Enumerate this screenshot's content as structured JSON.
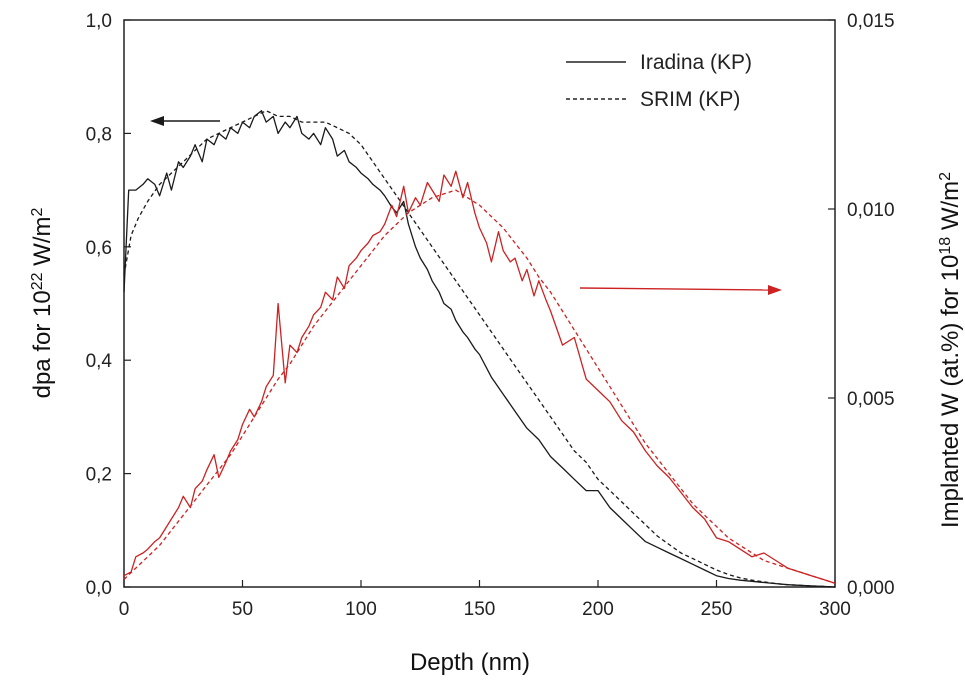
{
  "chart_data": {
    "type": "line",
    "xlabel": "Depth (nm)",
    "ylabel_left": {
      "prefix": "dpa for 10",
      "exp": "22",
      "mid": " W/m",
      "exp2": "2"
    },
    "ylabel_right": {
      "prefix": "Implanted W (at.%) for 10",
      "exp": "18",
      "mid": " W/m",
      "exp2": "2"
    },
    "xlim": [
      0,
      300
    ],
    "ylim_left": [
      0,
      1.0
    ],
    "ylim_right": [
      0,
      0.015
    ],
    "x_ticks": [
      {
        "value": 0,
        "label": "0"
      },
      {
        "value": 50,
        "label": "50"
      },
      {
        "value": 100,
        "label": "100"
      },
      {
        "value": 150,
        "label": "150"
      },
      {
        "value": 200,
        "label": "200"
      },
      {
        "value": 250,
        "label": "250"
      },
      {
        "value": 300,
        "label": "300"
      }
    ],
    "y_left_ticks": [
      {
        "value": 0,
        "label": "0,0"
      },
      {
        "value": 0.2,
        "label": "0,2"
      },
      {
        "value": 0.4,
        "label": "0,4"
      },
      {
        "value": 0.6,
        "label": "0,6"
      },
      {
        "value": 0.8,
        "label": "0,8"
      },
      {
        "value": 1.0,
        "label": "1,0"
      }
    ],
    "y_right_ticks": [
      {
        "value": 0,
        "label": "0,000"
      },
      {
        "value": 0.005,
        "label": "0,005"
      },
      {
        "value": 0.01,
        "label": "0,010"
      },
      {
        "value": 0.015,
        "label": "0,015"
      }
    ],
    "legend": {
      "position": "top-right",
      "entries": [
        {
          "label": "Iradina (KP)",
          "style": "solid"
        },
        {
          "label": "SRIM (KP)",
          "style": "dashed"
        }
      ]
    },
    "colors": {
      "dpa": "#1a1a1a",
      "implanted": "#cc2222"
    },
    "series": [
      {
        "name": "Iradina (KP)",
        "quantity": "dpa",
        "axis": "left",
        "style": "solid",
        "x": [
          0,
          2,
          5,
          8,
          10,
          13,
          15,
          18,
          20,
          23,
          25,
          28,
          30,
          33,
          35,
          38,
          40,
          43,
          45,
          48,
          50,
          53,
          55,
          58,
          60,
          63,
          65,
          68,
          70,
          73,
          75,
          78,
          80,
          83,
          85,
          88,
          90,
          93,
          95,
          98,
          100,
          103,
          105,
          108,
          110,
          113,
          115,
          118,
          120,
          123,
          125,
          128,
          130,
          133,
          135,
          138,
          140,
          143,
          145,
          148,
          150,
          155,
          160,
          165,
          170,
          175,
          180,
          185,
          190,
          195,
          200,
          205,
          210,
          215,
          220,
          225,
          230,
          235,
          240,
          245,
          250,
          255,
          260,
          265,
          270,
          275,
          280,
          285,
          290,
          295,
          300
        ],
        "y": [
          0.52,
          0.7,
          0.7,
          0.71,
          0.72,
          0.71,
          0.69,
          0.73,
          0.7,
          0.75,
          0.74,
          0.76,
          0.78,
          0.75,
          0.79,
          0.78,
          0.8,
          0.79,
          0.81,
          0.8,
          0.82,
          0.81,
          0.83,
          0.84,
          0.82,
          0.83,
          0.8,
          0.82,
          0.81,
          0.83,
          0.8,
          0.79,
          0.8,
          0.78,
          0.81,
          0.79,
          0.76,
          0.77,
          0.75,
          0.74,
          0.73,
          0.72,
          0.71,
          0.7,
          0.69,
          0.67,
          0.66,
          0.68,
          0.64,
          0.6,
          0.58,
          0.56,
          0.54,
          0.52,
          0.5,
          0.49,
          0.47,
          0.45,
          0.44,
          0.42,
          0.41,
          0.37,
          0.34,
          0.31,
          0.28,
          0.26,
          0.23,
          0.21,
          0.19,
          0.17,
          0.17,
          0.14,
          0.12,
          0.1,
          0.08,
          0.07,
          0.06,
          0.05,
          0.04,
          0.03,
          0.02,
          0.015,
          0.012,
          0.01,
          0.008,
          0.006,
          0.004,
          0.003,
          0.002,
          0.001,
          0.0
        ]
      },
      {
        "name": "SRIM (KP)",
        "quantity": "dpa",
        "axis": "left",
        "style": "dashed",
        "x": [
          0,
          3,
          6,
          10,
          15,
          20,
          25,
          30,
          35,
          40,
          45,
          50,
          55,
          60,
          65,
          70,
          75,
          80,
          85,
          90,
          95,
          100,
          105,
          110,
          115,
          120,
          125,
          130,
          135,
          140,
          145,
          150,
          155,
          160,
          165,
          170,
          175,
          180,
          185,
          190,
          195,
          200,
          205,
          210,
          215,
          220,
          225,
          230,
          235,
          240,
          245,
          250,
          255,
          260,
          265,
          270,
          275,
          280,
          285,
          290,
          295,
          300
        ],
        "y": [
          0.55,
          0.62,
          0.65,
          0.68,
          0.71,
          0.73,
          0.75,
          0.77,
          0.79,
          0.8,
          0.81,
          0.82,
          0.83,
          0.84,
          0.83,
          0.83,
          0.82,
          0.82,
          0.82,
          0.81,
          0.8,
          0.78,
          0.75,
          0.72,
          0.69,
          0.66,
          0.63,
          0.6,
          0.57,
          0.54,
          0.51,
          0.48,
          0.45,
          0.42,
          0.39,
          0.36,
          0.33,
          0.3,
          0.27,
          0.24,
          0.22,
          0.19,
          0.17,
          0.15,
          0.13,
          0.11,
          0.09,
          0.075,
          0.06,
          0.05,
          0.04,
          0.03,
          0.022,
          0.016,
          0.012,
          0.009,
          0.006,
          0.004,
          0.003,
          0.002,
          0.001,
          0.0
        ]
      },
      {
        "name": "Iradina (KP)",
        "quantity": "implanted W",
        "axis": "right",
        "style": "solid",
        "x": [
          0,
          3,
          5,
          8,
          10,
          13,
          15,
          18,
          20,
          23,
          25,
          28,
          30,
          33,
          35,
          38,
          40,
          43,
          45,
          48,
          50,
          53,
          55,
          58,
          60,
          63,
          65,
          68,
          70,
          73,
          75,
          78,
          80,
          83,
          85,
          88,
          90,
          93,
          95,
          98,
          100,
          103,
          105,
          108,
          110,
          113,
          115,
          118,
          120,
          123,
          125,
          128,
          130,
          133,
          135,
          138,
          140,
          143,
          145,
          148,
          150,
          153,
          155,
          158,
          160,
          163,
          165,
          168,
          170,
          173,
          175,
          178,
          180,
          185,
          190,
          195,
          200,
          205,
          210,
          215,
          220,
          225,
          230,
          235,
          240,
          245,
          250,
          255,
          260,
          265,
          270,
          275,
          280,
          285,
          290,
          295,
          300
        ],
        "y": [
          0.0003,
          0.0004,
          0.0008,
          0.0009,
          0.001,
          0.0012,
          0.0013,
          0.0016,
          0.0018,
          0.0021,
          0.0024,
          0.0021,
          0.0026,
          0.0028,
          0.0031,
          0.0035,
          0.0029,
          0.0033,
          0.0036,
          0.0039,
          0.0043,
          0.0047,
          0.0045,
          0.0049,
          0.0053,
          0.0056,
          0.0075,
          0.0054,
          0.0064,
          0.0062,
          0.0066,
          0.0069,
          0.0072,
          0.0074,
          0.0078,
          0.0076,
          0.0082,
          0.0079,
          0.0085,
          0.0087,
          0.0089,
          0.0091,
          0.0093,
          0.0094,
          0.0096,
          0.0101,
          0.0098,
          0.0106,
          0.0099,
          0.0103,
          0.0101,
          0.0107,
          0.0105,
          0.0102,
          0.0109,
          0.0106,
          0.011,
          0.0103,
          0.0107,
          0.0099,
          0.0095,
          0.0091,
          0.0086,
          0.0094,
          0.0089,
          0.0086,
          0.0087,
          0.0081,
          0.0084,
          0.0077,
          0.0081,
          0.0076,
          0.0073,
          0.0064,
          0.0066,
          0.0055,
          0.0052,
          0.0049,
          0.0044,
          0.0041,
          0.0036,
          0.0032,
          0.0029,
          0.0025,
          0.0021,
          0.0018,
          0.0013,
          0.0012,
          0.001,
          0.0008,
          0.0009,
          0.0007,
          0.0005,
          0.0004,
          0.0003,
          0.0002,
          0.0001
        ]
      },
      {
        "name": "SRIM (KP)",
        "quantity": "implanted W",
        "axis": "right",
        "style": "dashed",
        "x": [
          0,
          5,
          10,
          15,
          20,
          25,
          30,
          35,
          40,
          45,
          50,
          55,
          60,
          65,
          70,
          75,
          80,
          85,
          90,
          95,
          100,
          105,
          110,
          115,
          120,
          125,
          130,
          135,
          140,
          145,
          150,
          155,
          160,
          165,
          170,
          175,
          180,
          185,
          190,
          195,
          200,
          205,
          210,
          215,
          220,
          225,
          230,
          235,
          240,
          245,
          250,
          255,
          260,
          265,
          270,
          275,
          280,
          285,
          290,
          295,
          300
        ],
        "y": [
          0.0002,
          0.0005,
          0.0008,
          0.0011,
          0.0015,
          0.0019,
          0.0023,
          0.0027,
          0.0031,
          0.0035,
          0.004,
          0.0045,
          0.005,
          0.0055,
          0.0059,
          0.0064,
          0.0069,
          0.0073,
          0.0077,
          0.0081,
          0.0085,
          0.0089,
          0.0093,
          0.0096,
          0.0099,
          0.0101,
          0.0103,
          0.0104,
          0.0105,
          0.0103,
          0.0101,
          0.0098,
          0.0095,
          0.0091,
          0.0087,
          0.0082,
          0.0078,
          0.0073,
          0.0068,
          0.0063,
          0.0058,
          0.0053,
          0.0048,
          0.0043,
          0.0038,
          0.0034,
          0.003,
          0.0026,
          0.0022,
          0.0019,
          0.0016,
          0.0013,
          0.0011,
          0.0009,
          0.0007,
          0.0006,
          0.0005,
          0.0004,
          0.0003,
          0.0002,
          0.0001
        ]
      }
    ],
    "annotations": [
      {
        "type": "arrow",
        "direction": "left",
        "points_to": "left axis",
        "color": "#1a1a1a"
      },
      {
        "type": "arrow",
        "direction": "right",
        "points_to": "right axis",
        "color": "#cc2222"
      }
    ]
  }
}
